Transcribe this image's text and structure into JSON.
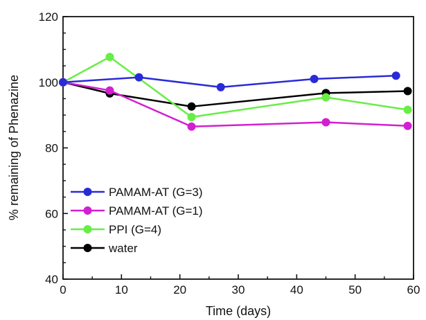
{
  "chart_data": {
    "type": "line",
    "title": "",
    "xlabel": "Time (days)",
    "ylabel": "% remaining of Phenazine",
    "xlim": [
      0,
      60
    ],
    "ylim": [
      40,
      120
    ],
    "x_ticks": [
      0,
      10,
      20,
      30,
      40,
      50,
      60
    ],
    "y_ticks": [
      40,
      60,
      80,
      100,
      120
    ],
    "grid": false,
    "legend_position": "bottom-left",
    "series": [
      {
        "name": "PAMAM-AT (G=3)",
        "color": "#2a2ad8",
        "x": [
          0,
          13,
          27,
          43,
          57
        ],
        "y": [
          100,
          101.5,
          98.5,
          101,
          102
        ]
      },
      {
        "name": "PAMAM-AT (G=1)",
        "color": "#d21fd2",
        "x": [
          0,
          8,
          22,
          45,
          59
        ],
        "y": [
          100,
          97.5,
          86.5,
          87.8,
          86.7
        ]
      },
      {
        "name": "PPI (G=4)",
        "color": "#66ee44",
        "x": [
          0,
          8,
          22,
          45,
          59
        ],
        "y": [
          100,
          107.7,
          89.4,
          95.4,
          91.6
        ]
      },
      {
        "name": "water",
        "color": "#000000",
        "x": [
          0,
          8,
          22,
          45,
          59
        ],
        "y": [
          100,
          96.6,
          92.6,
          96.7,
          97.3
        ]
      }
    ]
  }
}
